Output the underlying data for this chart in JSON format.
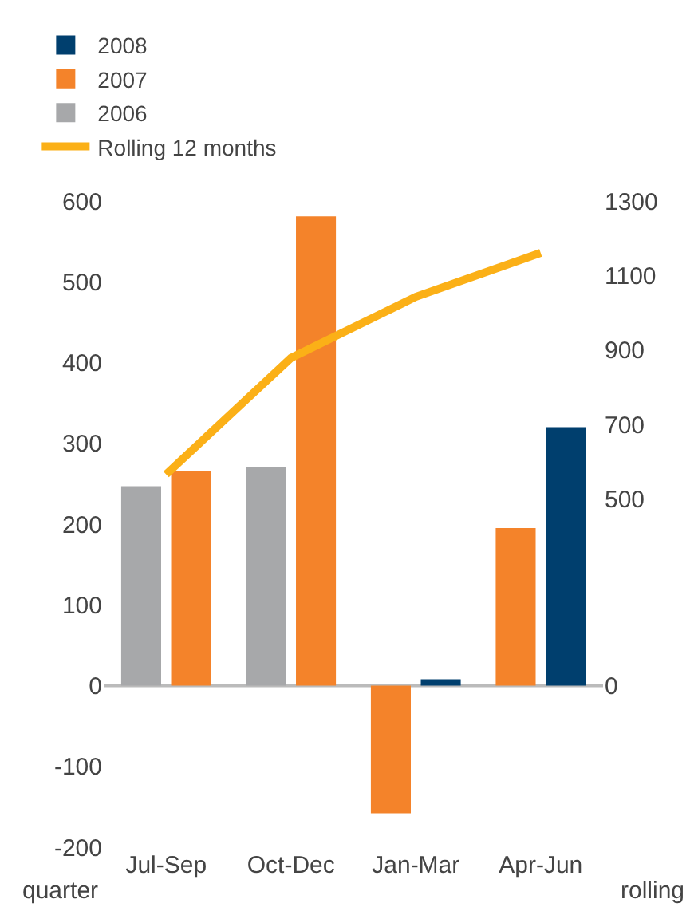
{
  "chart_data": {
    "type": "bar",
    "categories": [
      "Jul-Sep",
      "Oct-Dec",
      "Jan-Mar",
      "Apr-Jun"
    ],
    "series": [
      {
        "name": "2008",
        "color": "#003f6e",
        "values": [
          null,
          null,
          8,
          320
        ]
      },
      {
        "name": "2007",
        "color": "#f4832a",
        "values": [
          266,
          581,
          -158,
          195
        ]
      },
      {
        "name": "2006",
        "color": "#a7a8aa",
        "values": [
          247,
          270,
          null,
          null
        ]
      },
      {
        "name": "Rolling 12 months",
        "type": "line",
        "axis": "y2",
        "color": "#fbb017",
        "values": [
          567,
          879,
          1043,
          1161
        ]
      }
    ],
    "xlabel": "quarter",
    "y2label": "rolling",
    "ylim": [
      -200,
      600
    ],
    "yticks": [
      -200,
      -100,
      0,
      100,
      200,
      300,
      400,
      500,
      600
    ],
    "y2lim": [
      0,
      1300
    ],
    "y2ticks": [
      0,
      500,
      700,
      900,
      1100,
      1300
    ],
    "ref_lines": [
      {
        "axis": "y",
        "value": 0,
        "color": "#bbbbbb"
      }
    ],
    "legend": "top left",
    "grid": false,
    "marker": "none"
  }
}
